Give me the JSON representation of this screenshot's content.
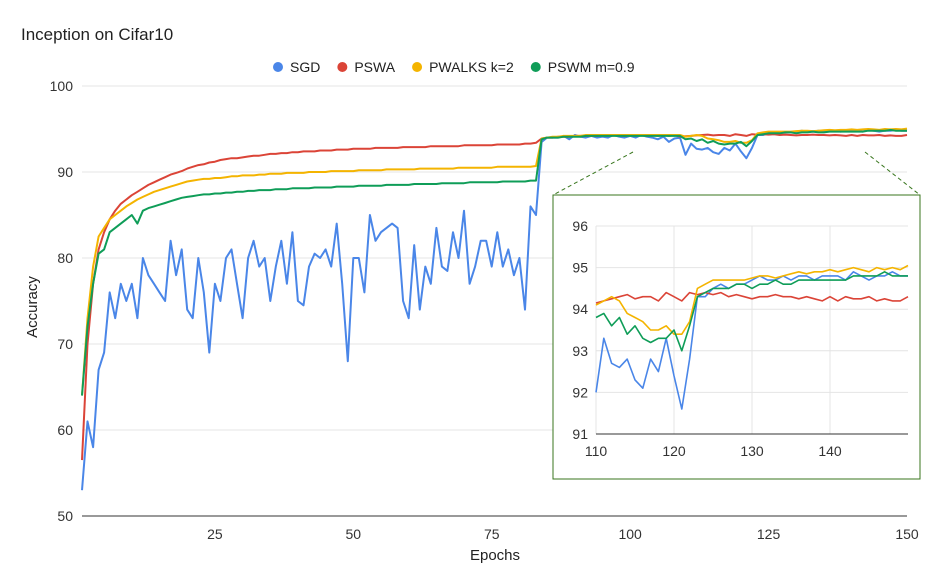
{
  "chart_data": {
    "type": "line",
    "title": "Inception on Cifar10",
    "xlabel": "Epochs",
    "ylabel": "Accuracy",
    "xlim": [
      1,
      150
    ],
    "ylim": [
      50,
      100
    ],
    "x_ticks": [
      25,
      50,
      75,
      100,
      125,
      150
    ],
    "y_ticks": [
      50,
      60,
      70,
      80,
      90,
      100
    ],
    "grid": true,
    "legend_position": "top",
    "series": [
      {
        "name": "SGD",
        "color": "#4a86e8",
        "values": [
          53.0,
          61.0,
          58.0,
          67.0,
          69.0,
          76.0,
          73.0,
          77.0,
          75.0,
          77.0,
          73.0,
          80.0,
          78.0,
          77.0,
          76.0,
          75.0,
          82.0,
          78.0,
          81.0,
          74.0,
          73.0,
          80.0,
          76.0,
          69.0,
          77.0,
          75.0,
          80.0,
          81.0,
          77.0,
          73.0,
          80.0,
          82.0,
          79.0,
          80.0,
          75.0,
          79.0,
          82.0,
          77.0,
          83.0,
          75.0,
          74.5,
          79.0,
          80.5,
          80.0,
          81.0,
          79.0,
          84.0,
          77.0,
          68.0,
          80.0,
          80.0,
          76.0,
          85.0,
          82.0,
          83.0,
          83.5,
          84.0,
          83.5,
          75.0,
          73.0,
          81.5,
          74.0,
          79.0,
          77.0,
          83.5,
          79.0,
          78.5,
          83.0,
          80.0,
          85.5,
          77.0,
          79.0,
          82.0,
          82.0,
          79.0,
          83.0,
          79.0,
          81.0,
          78.0,
          80.0,
          74.0,
          86.0,
          85.0,
          93.5,
          94.0,
          94.0,
          94.0,
          94.2,
          93.8,
          94.3,
          94.1,
          94.0,
          94.2,
          94.0,
          94.1,
          94.0,
          94.3,
          94.1,
          94.0,
          94.2,
          94.0,
          94.3,
          94.1,
          94.0,
          93.8,
          94.1,
          93.5,
          93.9,
          94.0,
          92.0,
          93.3,
          92.7,
          92.6,
          92.8,
          92.3,
          92.1,
          92.8,
          92.5,
          93.3,
          92.4,
          91.6,
          92.8,
          94.3,
          94.3,
          94.5,
          94.6,
          94.5,
          94.6,
          94.6,
          94.7,
          94.8,
          94.7,
          94.7,
          94.8,
          94.7,
          94.8,
          94.8,
          94.7,
          94.8,
          94.8,
          94.8,
          94.7,
          94.9,
          94.8,
          94.7,
          94.8,
          94.8,
          94.9,
          94.8,
          94.8
        ]
      },
      {
        "name": "PSWA",
        "color": "#db4437",
        "values": [
          56.5,
          70.0,
          77.0,
          81.0,
          83.0,
          84.5,
          85.5,
          86.3,
          86.8,
          87.3,
          87.7,
          88.1,
          88.5,
          88.8,
          89.1,
          89.4,
          89.7,
          89.9,
          90.1,
          90.4,
          90.6,
          90.8,
          90.9,
          91.1,
          91.2,
          91.4,
          91.5,
          91.6,
          91.6,
          91.7,
          91.8,
          91.9,
          91.9,
          92.0,
          92.1,
          92.1,
          92.2,
          92.2,
          92.3,
          92.3,
          92.4,
          92.4,
          92.4,
          92.5,
          92.5,
          92.5,
          92.6,
          92.6,
          92.6,
          92.7,
          92.7,
          92.7,
          92.7,
          92.8,
          92.8,
          92.8,
          92.8,
          92.8,
          92.9,
          92.9,
          92.9,
          92.9,
          92.9,
          93.0,
          93.0,
          93.0,
          93.0,
          93.0,
          93.0,
          93.1,
          93.1,
          93.1,
          93.1,
          93.1,
          93.1,
          93.2,
          93.2,
          93.2,
          93.2,
          93.2,
          93.3,
          93.3,
          93.4,
          93.9,
          94.0,
          94.0,
          94.1,
          94.1,
          94.1,
          94.2,
          94.2,
          94.2,
          94.2,
          94.2,
          94.3,
          94.3,
          94.3,
          94.3,
          94.2,
          94.3,
          94.3,
          94.3,
          94.2,
          94.3,
          94.2,
          94.3,
          94.2,
          94.3,
          94.1,
          94.15,
          94.2,
          94.25,
          94.3,
          94.35,
          94.25,
          94.3,
          94.3,
          94.2,
          94.4,
          94.3,
          94.2,
          94.4,
          94.35,
          94.4,
          94.35,
          94.4,
          94.3,
          94.35,
          94.3,
          94.25,
          94.3,
          94.3,
          94.35,
          94.3,
          94.3,
          94.25,
          94.3,
          94.25,
          94.2,
          94.3,
          94.2,
          94.3,
          94.25,
          94.25,
          94.3,
          94.2,
          94.25,
          94.2,
          94.2,
          94.3
        ]
      },
      {
        "name": "PWALKS k=2",
        "color": "#f4b400",
        "values": [
          64.0,
          73.0,
          79.0,
          82.5,
          83.5,
          84.5,
          85.0,
          85.5,
          86.0,
          86.4,
          86.8,
          87.1,
          87.4,
          87.7,
          87.9,
          88.1,
          88.3,
          88.5,
          88.7,
          88.9,
          89.0,
          89.1,
          89.2,
          89.2,
          89.3,
          89.3,
          89.4,
          89.5,
          89.5,
          89.6,
          89.6,
          89.6,
          89.7,
          89.7,
          89.8,
          89.8,
          89.8,
          89.9,
          89.9,
          89.9,
          89.9,
          90.0,
          90.0,
          90.0,
          90.0,
          90.1,
          90.1,
          90.1,
          90.1,
          90.1,
          90.2,
          90.2,
          90.2,
          90.2,
          90.2,
          90.3,
          90.3,
          90.3,
          90.3,
          90.3,
          90.3,
          90.4,
          90.4,
          90.4,
          90.4,
          90.4,
          90.4,
          90.4,
          90.5,
          90.5,
          90.5,
          90.5,
          90.5,
          90.5,
          90.5,
          90.6,
          90.6,
          90.6,
          90.6,
          90.6,
          90.6,
          90.6,
          90.7,
          93.9,
          94.0,
          94.1,
          94.1,
          94.2,
          94.2,
          94.2,
          94.2,
          94.3,
          94.3,
          94.3,
          94.3,
          94.3,
          94.3,
          94.3,
          94.3,
          94.3,
          94.3,
          94.3,
          94.3,
          94.3,
          94.3,
          94.3,
          94.3,
          94.3,
          94.3,
          94.1,
          94.2,
          94.3,
          94.2,
          93.9,
          93.8,
          93.7,
          93.5,
          93.5,
          93.6,
          93.4,
          93.4,
          93.7,
          94.5,
          94.6,
          94.7,
          94.7,
          94.7,
          94.7,
          94.7,
          94.75,
          94.8,
          94.8,
          94.75,
          94.8,
          94.85,
          94.9,
          94.85,
          94.9,
          94.9,
          94.95,
          94.9,
          94.95,
          95.0,
          94.95,
          94.9,
          95.0,
          94.95,
          95.0,
          94.95,
          95.05
        ]
      },
      {
        "name": "PSWM m=0.9",
        "color": "#0f9d58",
        "values": [
          64.0,
          72.0,
          77.0,
          80.5,
          81.0,
          83.0,
          83.5,
          84.0,
          84.5,
          85.0,
          84.0,
          85.5,
          85.8,
          86.0,
          86.2,
          86.4,
          86.6,
          86.8,
          87.0,
          87.1,
          87.2,
          87.3,
          87.4,
          87.4,
          87.5,
          87.5,
          87.6,
          87.6,
          87.7,
          87.7,
          87.8,
          87.8,
          87.9,
          87.9,
          87.9,
          88.0,
          88.0,
          88.0,
          88.1,
          88.1,
          88.1,
          88.1,
          88.2,
          88.2,
          88.2,
          88.2,
          88.3,
          88.3,
          88.3,
          88.3,
          88.4,
          88.4,
          88.4,
          88.4,
          88.4,
          88.5,
          88.5,
          88.5,
          88.5,
          88.5,
          88.6,
          88.6,
          88.6,
          88.6,
          88.6,
          88.7,
          88.7,
          88.7,
          88.7,
          88.7,
          88.8,
          88.8,
          88.8,
          88.8,
          88.8,
          88.8,
          88.9,
          88.9,
          88.9,
          88.9,
          88.9,
          89.0,
          89.0,
          93.8,
          94.0,
          94.0,
          94.0,
          94.1,
          94.1,
          94.1,
          94.1,
          94.2,
          94.2,
          94.2,
          94.2,
          94.2,
          94.2,
          94.2,
          94.2,
          94.2,
          94.2,
          94.2,
          94.2,
          94.2,
          94.2,
          94.2,
          94.2,
          94.2,
          94.2,
          93.8,
          93.9,
          93.6,
          93.8,
          93.4,
          93.6,
          93.3,
          93.2,
          93.3,
          93.3,
          93.5,
          93.0,
          93.6,
          94.3,
          94.4,
          94.5,
          94.5,
          94.5,
          94.6,
          94.6,
          94.5,
          94.6,
          94.6,
          94.7,
          94.6,
          94.6,
          94.7,
          94.7,
          94.7,
          94.7,
          94.7,
          94.7,
          94.7,
          94.8,
          94.8,
          94.8,
          94.8,
          94.9,
          94.8,
          94.8,
          94.8
        ]
      }
    ],
    "inset": {
      "xlim": [
        110,
        150
      ],
      "ylim": [
        91,
        96
      ],
      "x_ticks": [
        110,
        120,
        130,
        140
      ],
      "y_ticks": [
        91,
        92,
        93,
        94,
        95,
        96
      ]
    }
  }
}
